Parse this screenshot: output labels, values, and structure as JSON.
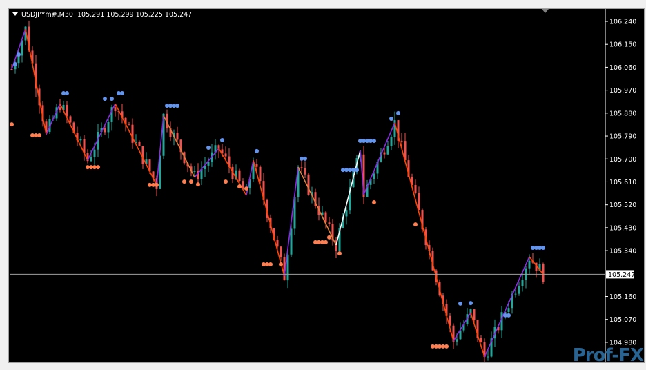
{
  "header": {
    "symbol": "USDJPYm#,M30",
    "ohlc": "105.291 105.299 105.225 105.247"
  },
  "logo_text": "Prof-FX",
  "colors": {
    "background": "#000000",
    "bull": "#26a69a",
    "bear": "#ef5350",
    "zigzag_down": "#ff4500",
    "zigzag_up": "#8a2be2",
    "zigzag_alt": "#e0803c",
    "zigzag_white": "#ffffff",
    "dot_high": "#6495ed",
    "dot_low": "#ff7f50",
    "current_price_line": "#a0a0a0"
  },
  "chart_data": {
    "type": "candlestick",
    "timeframe": "M30",
    "ylim": [
      104.93,
      106.27
    ],
    "y_ticks": [
      "106.240",
      "106.150",
      "106.060",
      "105.970",
      "105.880",
      "105.790",
      "105.700",
      "105.610",
      "105.520",
      "105.430",
      "105.340",
      "105.160",
      "105.070",
      "104.980"
    ],
    "current_price": "105.247",
    "zigzag": [
      {
        "bar": 0,
        "price": 106.053
      },
      {
        "bar": 4,
        "price": 106.21
      },
      {
        "bar": 10,
        "price": 105.796
      },
      {
        "bar": 14,
        "price": 105.917
      },
      {
        "bar": 22,
        "price": 105.695
      },
      {
        "bar": 30,
        "price": 105.917
      },
      {
        "bar": 42,
        "price": 105.598
      },
      {
        "bar": 44,
        "price": 105.87
      },
      {
        "bar": 53,
        "price": 105.628
      },
      {
        "bar": 60,
        "price": 105.741
      },
      {
        "bar": 68,
        "price": 105.557
      },
      {
        "bar": 70,
        "price": 105.695
      },
      {
        "bar": 79,
        "price": 105.24
      },
      {
        "bar": 83,
        "price": 105.668
      },
      {
        "bar": 94,
        "price": 105.362
      },
      {
        "bar": 101,
        "price": 105.733
      },
      {
        "bar": 102,
        "price": 105.56
      },
      {
        "bar": 111,
        "price": 105.842
      },
      {
        "bar": 128,
        "price": 104.985
      },
      {
        "bar": 133,
        "price": 105.096
      },
      {
        "bar": 137,
        "price": 104.923
      },
      {
        "bar": 150,
        "price": 105.316
      },
      {
        "bar": 154,
        "price": 105.247
      }
    ],
    "zigzag_segment_colors": [
      "zigzag_up",
      "zigzag_down",
      "zigzag_up",
      "zigzag_down",
      "zigzag_up",
      "zigzag_down",
      "zigzag_up",
      "zigzag_alt",
      "zigzag_up",
      "zigzag_down",
      "zigzag_up",
      "zigzag_down",
      "zigzag_up",
      "zigzag_alt",
      "zigzag_white",
      "zigzag_up",
      "zigzag_up",
      "zigzag_down",
      "zigzag_up",
      "zigzag_down",
      "zigzag_up",
      "zigzag_down"
    ],
    "dots_high": [
      {
        "bar": 1,
        "price": 106.072
      },
      {
        "bar": 2,
        "price": 106.11
      },
      {
        "bar": 15,
        "price": 105.958
      },
      {
        "bar": 16,
        "price": 105.958
      },
      {
        "bar": 27,
        "price": 105.936
      },
      {
        "bar": 29,
        "price": 105.936
      },
      {
        "bar": 31,
        "price": 105.958
      },
      {
        "bar": 32,
        "price": 105.958
      },
      {
        "bar": 45,
        "price": 105.909
      },
      {
        "bar": 46,
        "price": 105.909
      },
      {
        "bar": 47,
        "price": 105.909
      },
      {
        "bar": 48,
        "price": 105.909
      },
      {
        "bar": 57,
        "price": 105.744
      },
      {
        "bar": 61,
        "price": 105.774
      },
      {
        "bar": 71,
        "price": 105.731
      },
      {
        "bar": 84,
        "price": 105.701
      },
      {
        "bar": 85,
        "price": 105.701
      },
      {
        "bar": 96,
        "price": 105.657
      },
      {
        "bar": 97,
        "price": 105.657
      },
      {
        "bar": 98,
        "price": 105.657
      },
      {
        "bar": 99,
        "price": 105.657
      },
      {
        "bar": 100,
        "price": 105.657
      },
      {
        "bar": 101,
        "price": 105.771
      },
      {
        "bar": 102,
        "price": 105.771
      },
      {
        "bar": 103,
        "price": 105.771
      },
      {
        "bar": 104,
        "price": 105.771
      },
      {
        "bar": 105,
        "price": 105.771
      },
      {
        "bar": 110,
        "price": 105.858
      },
      {
        "bar": 112,
        "price": 105.88
      },
      {
        "bar": 130,
        "price": 105.132
      },
      {
        "bar": 133,
        "price": 105.134
      },
      {
        "bar": 143,
        "price": 105.086
      },
      {
        "bar": 144,
        "price": 105.086
      },
      {
        "bar": 151,
        "price": 105.351
      },
      {
        "bar": 152,
        "price": 105.351
      },
      {
        "bar": 153,
        "price": 105.351
      },
      {
        "bar": 154,
        "price": 105.351
      }
    ],
    "dots_low": [
      {
        "bar": 0,
        "price": 105.836
      },
      {
        "bar": 6,
        "price": 105.793
      },
      {
        "bar": 7,
        "price": 105.793
      },
      {
        "bar": 8,
        "price": 105.793
      },
      {
        "bar": 22,
        "price": 105.668
      },
      {
        "bar": 23,
        "price": 105.668
      },
      {
        "bar": 24,
        "price": 105.668
      },
      {
        "bar": 25,
        "price": 105.668
      },
      {
        "bar": 40,
        "price": 105.598
      },
      {
        "bar": 41,
        "price": 105.598
      },
      {
        "bar": 42,
        "price": 105.598
      },
      {
        "bar": 50,
        "price": 105.611
      },
      {
        "bar": 52,
        "price": 105.611
      },
      {
        "bar": 54,
        "price": 105.6
      },
      {
        "bar": 62,
        "price": 105.611
      },
      {
        "bar": 66,
        "price": 105.592
      },
      {
        "bar": 68,
        "price": 105.584
      },
      {
        "bar": 73,
        "price": 105.286
      },
      {
        "bar": 74,
        "price": 105.286
      },
      {
        "bar": 75,
        "price": 105.286
      },
      {
        "bar": 78,
        "price": 105.286
      },
      {
        "bar": 88,
        "price": 105.373
      },
      {
        "bar": 89,
        "price": 105.373
      },
      {
        "bar": 90,
        "price": 105.373
      },
      {
        "bar": 91,
        "price": 105.373
      },
      {
        "bar": 92,
        "price": 105.392
      },
      {
        "bar": 95,
        "price": 105.329
      },
      {
        "bar": 105,
        "price": 105.53
      },
      {
        "bar": 117,
        "price": 105.443
      },
      {
        "bar": 122,
        "price": 104.964
      },
      {
        "bar": 123,
        "price": 104.964
      },
      {
        "bar": 124,
        "price": 104.964
      },
      {
        "bar": 125,
        "price": 104.964
      },
      {
        "bar": 126,
        "price": 104.964
      }
    ]
  }
}
